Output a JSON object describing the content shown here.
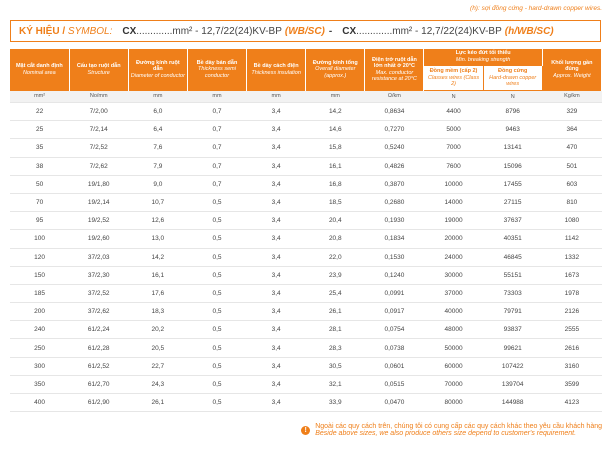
{
  "note": "(h): sợi đồng cứng - hard-drawn copper wires.",
  "symbol": {
    "label_vi": "KÝ HIỆU /",
    "label_en": "SYMBOL:",
    "code1": "CX",
    "spec1": ".............mm² - 12,7/22(24)KV-BP",
    "suffix1": "(WB/SC)",
    "sep": "-",
    "code2": "CX",
    "spec2": ".............mm² - 12,7/22(24)KV-BP",
    "suffix2": "(h/WB/SC)"
  },
  "table": {
    "headers": [
      {
        "vi": "Mặt cắt danh định",
        "en": "Nominal area"
      },
      {
        "vi": "Cấu tạo ruột dẫn",
        "en": "Structure"
      },
      {
        "vi": "Đường kính ruột dẫn",
        "en": "Diameter of conductor"
      },
      {
        "vi": "Bề dày bán dẫn",
        "en": "Thickness semi conductor"
      },
      {
        "vi": "Bề dày cách điện",
        "en": "Thickness insulation"
      },
      {
        "vi": "Đường kính tổng",
        "en": "Overall diameter (approx.)"
      },
      {
        "vi": "Điện trở ruột dẫn lớn nhất ở 20°C",
        "en": "Max. conductor resistance at 20°C"
      },
      {
        "vi": "Lực kéo đứt tối thiểu",
        "en": "Min. breaking strength",
        "sub": [
          {
            "vi": "Đồng mềm (cấp 2)",
            "en": "Classes wires (Class 2)"
          },
          {
            "vi": "Đồng cứng",
            "en": "Hard-drawn copper wires"
          }
        ]
      },
      {
        "vi": "Khối lượng gần đúng",
        "en": "Approx. Weight"
      }
    ],
    "units": [
      "mm²",
      "No/mm",
      "mm",
      "mm",
      "mm",
      "mm",
      "Ω/km",
      "N",
      "N",
      "Kg/km"
    ],
    "rows": [
      [
        "22",
        "7/2,00",
        "6,0",
        "0,7",
        "3,4",
        "14,2",
        "0,8634",
        "4400",
        "8796",
        "329"
      ],
      [
        "25",
        "7/2,14",
        "6,4",
        "0,7",
        "3,4",
        "14,6",
        "0,7270",
        "5000",
        "9463",
        "364"
      ],
      [
        "35",
        "7/2,52",
        "7,6",
        "0,7",
        "3,4",
        "15,8",
        "0,5240",
        "7000",
        "13141",
        "470"
      ],
      [
        "38",
        "7/2,62",
        "7,9",
        "0,7",
        "3,4",
        "16,1",
        "0,4826",
        "7600",
        "15096",
        "501"
      ],
      [
        "50",
        "19/1,80",
        "9,0",
        "0,7",
        "3,4",
        "16,8",
        "0,3870",
        "10000",
        "17455",
        "603"
      ],
      [
        "70",
        "19/2,14",
        "10,7",
        "0,5",
        "3,4",
        "18,5",
        "0,2680",
        "14000",
        "27115",
        "810"
      ],
      [
        "95",
        "19/2,52",
        "12,6",
        "0,5",
        "3,4",
        "20,4",
        "0,1930",
        "19000",
        "37637",
        "1080"
      ],
      [
        "100",
        "19/2,60",
        "13,0",
        "0,5",
        "3,4",
        "20,8",
        "0,1834",
        "20000",
        "40351",
        "1142"
      ],
      [
        "120",
        "37/2,03",
        "14,2",
        "0,5",
        "3,4",
        "22,0",
        "0,1530",
        "24000",
        "46845",
        "1332"
      ],
      [
        "150",
        "37/2,30",
        "16,1",
        "0,5",
        "3,4",
        "23,9",
        "0,1240",
        "30000",
        "55151",
        "1673"
      ],
      [
        "185",
        "37/2,52",
        "17,6",
        "0,5",
        "3,4",
        "25,4",
        "0,0991",
        "37000",
        "73303",
        "1978"
      ],
      [
        "200",
        "37/2,62",
        "18,3",
        "0,5",
        "3,4",
        "26,1",
        "0,0917",
        "40000",
        "79791",
        "2126"
      ],
      [
        "240",
        "61/2,24",
        "20,2",
        "0,5",
        "3,4",
        "28,1",
        "0,0754",
        "48000",
        "93837",
        "2555"
      ],
      [
        "250",
        "61/2,28",
        "20,5",
        "0,5",
        "3,4",
        "28,3",
        "0,0738",
        "50000",
        "99621",
        "2616"
      ],
      [
        "300",
        "61/2,52",
        "22,7",
        "0,5",
        "3,4",
        "30,5",
        "0,0601",
        "60000",
        "107422",
        "3160"
      ],
      [
        "350",
        "61/2,70",
        "24,3",
        "0,5",
        "3,4",
        "32,1",
        "0,0515",
        "70000",
        "139704",
        "3599"
      ],
      [
        "400",
        "61/2,90",
        "26,1",
        "0,5",
        "3,4",
        "33,9",
        "0,0470",
        "80000",
        "144988",
        "4123"
      ]
    ]
  },
  "footer": {
    "vi": "Ngoài các quy cách trên, chúng tôi có cung cấp các quy cách khác theo yêu cầu khách hàng",
    "en": "Beside above sizes, we also produce others size depend to customer's requirement."
  }
}
